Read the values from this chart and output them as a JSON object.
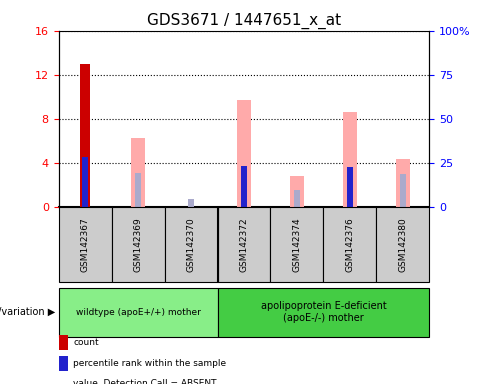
{
  "title": "GDS3671 / 1447651_x_at",
  "samples": [
    "GSM142367",
    "GSM142369",
    "GSM142370",
    "GSM142372",
    "GSM142374",
    "GSM142376",
    "GSM142380"
  ],
  "count_values": [
    13.0,
    0,
    0,
    0,
    0,
    0,
    0
  ],
  "rank_values": [
    28.0,
    0,
    0,
    23.0,
    0,
    22.5,
    0
  ],
  "value_absent": [
    0,
    39.0,
    0,
    60.5,
    17.5,
    54.0,
    27.0
  ],
  "rank_absent": [
    0,
    19.0,
    4.5,
    23.0,
    9.5,
    22.5,
    18.5
  ],
  "left_ylim": [
    0,
    16
  ],
  "right_ylim": [
    0,
    100
  ],
  "left_yticks": [
    0,
    4,
    8,
    12,
    16
  ],
  "right_yticks": [
    0,
    25,
    50,
    75,
    100
  ],
  "right_yticklabels": [
    "0",
    "25",
    "50",
    "75",
    "100%"
  ],
  "group1_label": "wildtype (apoE+/+) mother",
  "group2_label": "apolipoprotein E-deficient\n(apoE-/-) mother",
  "group1_count": 3,
  "group2_count": 4,
  "genotype_label": "genotype/variation",
  "count_color": "#cc0000",
  "rank_color": "#2222cc",
  "absent_value_color": "#ffaaaa",
  "absent_rank_color": "#aaaacc",
  "bg_color": "#ffffff",
  "group1_bg": "#88ee88",
  "group2_bg": "#44cc44",
  "sample_bg": "#cccccc"
}
